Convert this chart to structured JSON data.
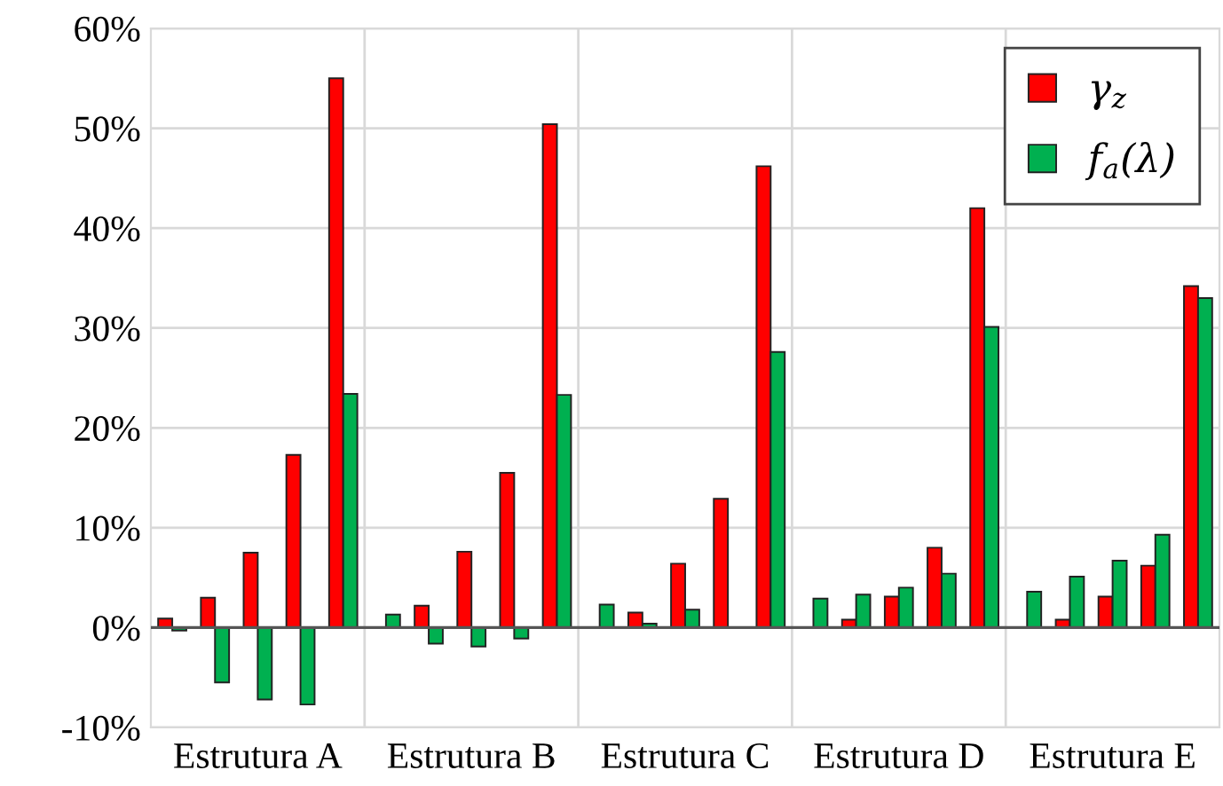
{
  "chart_data": {
    "type": "bar",
    "categories": [
      null,
      null,
      "Estrutura A",
      null,
      null,
      null,
      null,
      "Estrutura B",
      null,
      null,
      null,
      null,
      "Estrutura C",
      null,
      null,
      null,
      null,
      "Estrutura D",
      null,
      null,
      null,
      null,
      "Estrutura E",
      null,
      null
    ],
    "series": [
      {
        "name": "γ$_{z}$",
        "color": "#ff0000",
        "values": [
          0.9,
          3.0,
          7.5,
          17.3,
          55.0,
          null,
          2.2,
          7.6,
          15.5,
          50.4,
          null,
          1.5,
          6.4,
          12.9,
          46.2,
          null,
          0.8,
          3.1,
          8.0,
          42.0,
          null,
          0.8,
          3.1,
          6.2,
          34.2
        ]
      },
      {
        "name": "f$_{a}$(λ)",
        "color": "#00b050",
        "values": [
          -0.3,
          -5.5,
          -7.2,
          -7.7,
          23.4,
          1.3,
          -1.6,
          -1.9,
          -1.1,
          23.3,
          2.3,
          0.4,
          1.8,
          null,
          27.6,
          2.9,
          3.3,
          4.0,
          5.4,
          30.1,
          3.6,
          5.1,
          6.7,
          9.3,
          33.0
        ]
      }
    ],
    "ylim": [
      -10,
      60
    ],
    "yticks": [
      {
        "value": -10,
        "label": "-10%"
      },
      {
        "value": 0,
        "label": "0%"
      },
      {
        "value": 10,
        "label": "10%"
      },
      {
        "value": 20,
        "label": "20%"
      },
      {
        "value": 30,
        "label": "30%"
      },
      {
        "value": 40,
        "label": "40%"
      },
      {
        "value": 50,
        "label": "50%"
      },
      {
        "value": 60,
        "label": "60%"
      }
    ],
    "ref_lines": [
      {
        "axis": "y",
        "value": 0,
        "color": "#555555"
      }
    ],
    "grid": true,
    "legend": "top right"
  }
}
